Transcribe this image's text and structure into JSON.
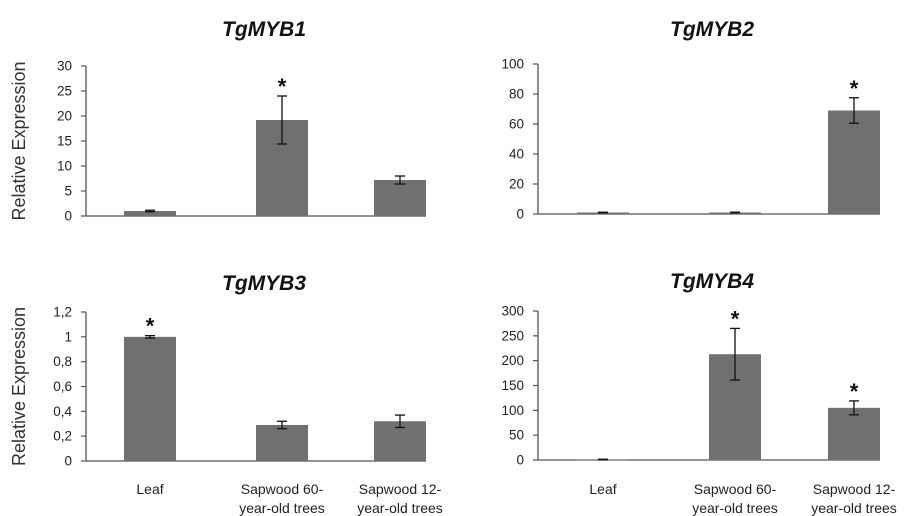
{
  "figure": {
    "ylabel": "Relative Expression",
    "categories": [
      "Leaf",
      "Sapwood 60-\nyear-old trees",
      "Sapwood 12-\nyear-old trees"
    ],
    "bar_color": "#707070",
    "axis_color": "#555555"
  },
  "chart_data": [
    {
      "type": "bar",
      "title": "TgMYB1",
      "ylabel": "Relative Expression",
      "categories": [
        "Leaf",
        "Sapwood 60-year-old trees",
        "Sapwood 12-year-old trees"
      ],
      "values": [
        1,
        19.2,
        7.2
      ],
      "errors": [
        0.15,
        4.8,
        0.8
      ],
      "significant": [
        false,
        true,
        false
      ],
      "ylim": [
        0,
        30
      ],
      "yticks": [
        0,
        5,
        10,
        15,
        20,
        25,
        30
      ],
      "ytick_labels": [
        "0",
        "5",
        "10",
        "15",
        "20",
        "25",
        "30"
      ],
      "grid": false
    },
    {
      "type": "bar",
      "title": "TgMYB2",
      "ylabel": "",
      "categories": [
        "Leaf",
        "Sapwood 60-year-old trees",
        "Sapwood 12-year-old trees"
      ],
      "values": [
        1,
        1,
        69
      ],
      "errors": [
        0.2,
        0.2,
        8.5
      ],
      "significant": [
        false,
        false,
        true
      ],
      "ylim": [
        0,
        100
      ],
      "yticks": [
        0,
        20,
        40,
        60,
        80,
        100
      ],
      "ytick_labels": [
        "0",
        "20",
        "40",
        "60",
        "80",
        "100"
      ],
      "grid": false
    },
    {
      "type": "bar",
      "title": "TgMYB3",
      "ylabel": "Relative Expression",
      "categories": [
        "Leaf",
        "Sapwood 60-year-old trees",
        "Sapwood 12-year-old trees"
      ],
      "values": [
        1,
        0.29,
        0.32
      ],
      "errors": [
        0.01,
        0.03,
        0.05
      ],
      "significant": [
        true,
        false,
        false
      ],
      "ylim": [
        0,
        1.2
      ],
      "yticks": [
        0,
        0.2,
        0.4,
        0.6,
        0.8,
        1,
        1.2
      ],
      "ytick_labels": [
        "0",
        "0,2",
        "0,4",
        "0,6",
        "0,8",
        "1",
        "1,2"
      ],
      "grid": false
    },
    {
      "type": "bar",
      "title": "TgMYB4",
      "ylabel": "",
      "categories": [
        "Leaf",
        "Sapwood 60-year-old trees",
        "Sapwood 12-year-old trees"
      ],
      "values": [
        1,
        213,
        105
      ],
      "errors": [
        0.5,
        52,
        14
      ],
      "significant": [
        false,
        true,
        true
      ],
      "ylim": [
        0,
        300
      ],
      "yticks": [
        0,
        50,
        100,
        150,
        200,
        250,
        300
      ],
      "ytick_labels": [
        "0",
        "50",
        "100",
        "150",
        "200",
        "250",
        "300"
      ],
      "grid": false
    }
  ]
}
